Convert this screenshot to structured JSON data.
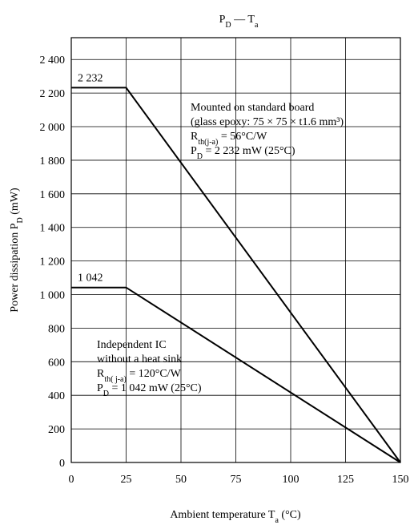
{
  "chart_data": {
    "type": "line",
    "title": [
      {
        "t": "P"
      },
      {
        "t": "D",
        "sub": true
      },
      {
        "t": " — T"
      },
      {
        "t": "a",
        "sub": true
      }
    ],
    "xlabel": [
      {
        "t": "Ambient temperature  T"
      },
      {
        "t": "a",
        "sub": true
      },
      {
        "t": "  (°C)"
      }
    ],
    "ylabel": [
      {
        "t": "Power dissipation  P"
      },
      {
        "t": "D",
        "sub": true
      },
      {
        "t": "  (mW)"
      }
    ],
    "x": [
      0,
      25,
      150
    ],
    "series": [
      {
        "color": "#000000",
        "values": [
          2232,
          2232,
          0
        ],
        "value_labels": [
          "2 232",
          null,
          null
        ]
      },
      {
        "color": "#000000",
        "values": [
          1042,
          1042,
          0
        ],
        "value_labels": [
          "1 042",
          null,
          null
        ]
      }
    ],
    "annotations": [
      [
        [
          {
            "t": "Mounted on standard board"
          }
        ],
        [
          {
            "t": "(glass epoxy: 75 × 75 × t1.6 mm³)"
          }
        ],
        [
          {
            "t": "R"
          },
          {
            "t": "th(j-a)",
            "sub": true
          },
          {
            "t": " = 56°C/W"
          }
        ],
        [
          {
            "t": "P"
          },
          {
            "t": "D",
            "sub": true
          },
          {
            "t": " = 2 232 mW (25°C)"
          }
        ]
      ],
      [
        [
          {
            "t": "Independent IC"
          }
        ],
        [
          {
            "t": "without a heat sink"
          }
        ],
        [
          {
            "t": "R"
          },
          {
            "t": "th( j-a)",
            "sub": true
          },
          {
            "t": " = 120°C/W"
          }
        ],
        [
          {
            "t": "P"
          },
          {
            "t": "D",
            "sub": true
          },
          {
            "t": " = 1 042 mW (25°C)"
          }
        ]
      ]
    ],
    "xlim": [
      0,
      150
    ],
    "xticks": [
      0,
      25,
      50,
      75,
      100,
      125,
      150
    ],
    "ylim": [
      0,
      2530
    ],
    "yticks": [
      0,
      200,
      400,
      600,
      800,
      {
        "value": 1000,
        "label": "1 000"
      },
      {
        "value": 1200,
        "label": "1 200"
      },
      {
        "value": 1400,
        "label": "1 400"
      },
      {
        "value": 1600,
        "label": "1 600"
      },
      {
        "value": 1800,
        "label": "1 800"
      },
      {
        "value": 2000,
        "label": "2 000"
      },
      {
        "value": 2200,
        "label": "2 200"
      },
      {
        "value": 2400,
        "label": "2 400"
      }
    ],
    "grid": true
  }
}
